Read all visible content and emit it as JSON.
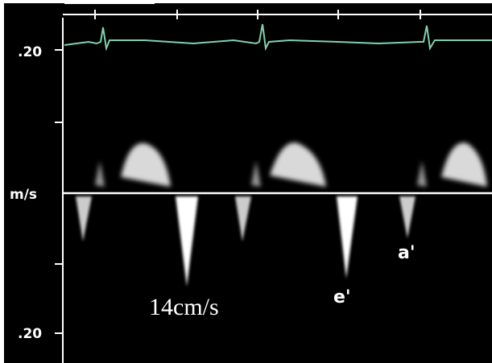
{
  "axis": {
    "top_label": ".20",
    "unit_label": "m/s",
    "bottom_label": ".20"
  },
  "annotations": {
    "peak": "14cm/s",
    "e_wave": "e'",
    "a_wave": "a'"
  }
}
